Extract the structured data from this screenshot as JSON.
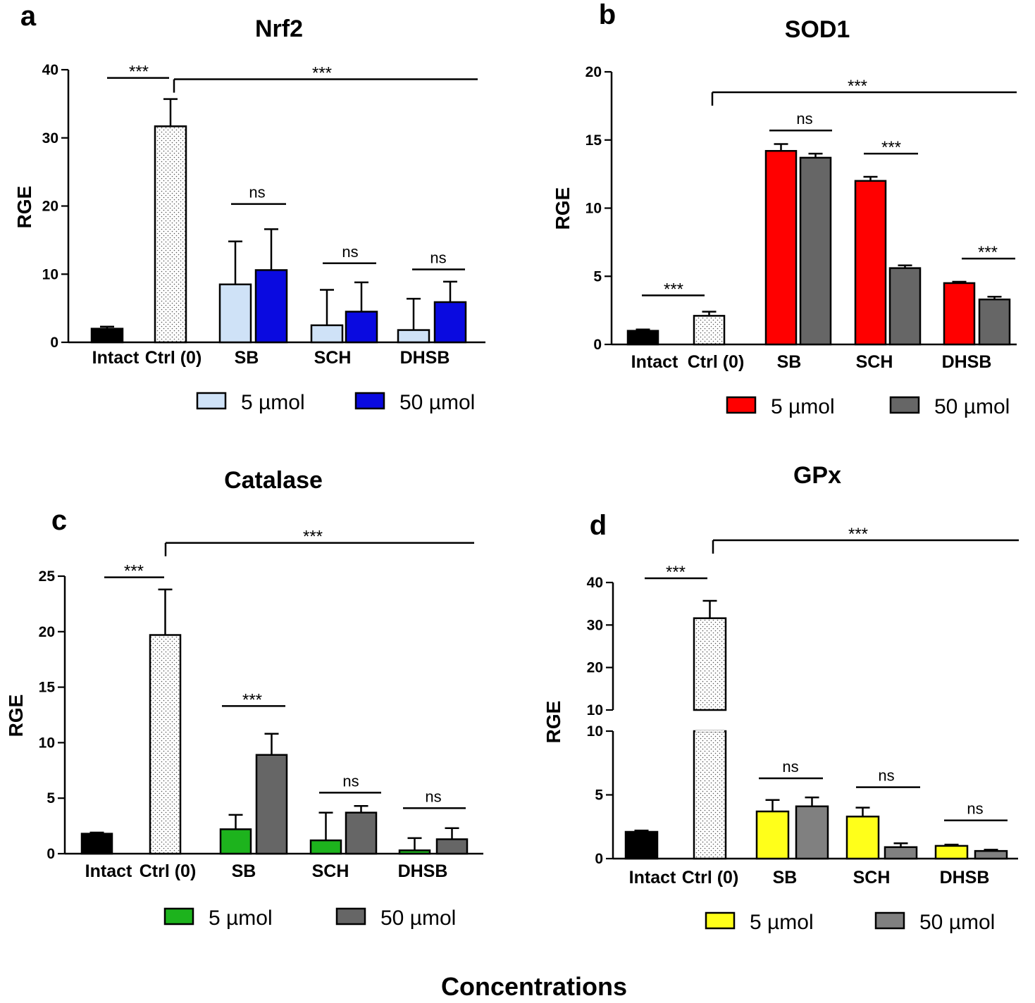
{
  "figure": {
    "common_xlabel": "Concentrations"
  },
  "chart_data": [
    {
      "panel": "a",
      "title": "Nrf2",
      "type": "bar",
      "ylabel": "RGE",
      "ylim": [
        0,
        40
      ],
      "yticks": [
        0,
        10,
        20,
        30,
        40
      ],
      "groups": [
        "Intact",
        "Ctrl (0)",
        "SB",
        "SCH",
        "DHSB"
      ],
      "legend": [
        {
          "label": "5 µmol",
          "color": "#cfe2f7"
        },
        {
          "label": "50 µmol",
          "color": "#0a0ae0"
        }
      ],
      "colors": {
        "intact": "#000000",
        "ctrl_pattern": "dots",
        "low": "#cfe2f7",
        "high": "#0a0ae0"
      },
      "bars": [
        {
          "group": "Intact",
          "series": "intact",
          "value": 2.0,
          "err": 0.3
        },
        {
          "group": "Ctrl (0)",
          "series": "ctrl",
          "value": 31.7,
          "err": 4.0
        },
        {
          "group": "SB",
          "series": "5 µmol",
          "value": 8.5,
          "err": 6.3
        },
        {
          "group": "SB",
          "series": "50 µmol",
          "value": 10.6,
          "err": 6.0
        },
        {
          "group": "SCH",
          "series": "5 µmol",
          "value": 2.5,
          "err": 5.2
        },
        {
          "group": "SCH",
          "series": "50 µmol",
          "value": 4.5,
          "err": 4.3
        },
        {
          "group": "DHSB",
          "series": "5 µmol",
          "value": 1.8,
          "err": 4.6
        },
        {
          "group": "DHSB",
          "series": "50 µmol",
          "value": 5.9,
          "err": 3.0
        }
      ],
      "annotations": [
        {
          "text": "***",
          "value": 38.8
        },
        {
          "text": "***",
          "value": 38.6
        },
        {
          "text": "ns",
          "value": 20.3
        },
        {
          "text": "ns",
          "value": 11.6
        },
        {
          "text": "ns",
          "value": 10.7
        }
      ]
    },
    {
      "panel": "b",
      "title": "SOD1",
      "type": "bar",
      "ylabel": "RGE",
      "ylim": [
        0,
        20
      ],
      "yticks": [
        0,
        5,
        10,
        15,
        20
      ],
      "groups": [
        "Intact",
        "Ctrl (0)",
        "SB",
        "SCH",
        "DHSB"
      ],
      "legend": [
        {
          "label": "5 µmol",
          "color": "#ff0000"
        },
        {
          "label": "50 µmol",
          "color": "#666666"
        }
      ],
      "colors": {
        "intact": "#000000",
        "ctrl_pattern": "dots",
        "low": "#ff0000",
        "high": "#666666"
      },
      "bars": [
        {
          "group": "Intact",
          "series": "intact",
          "value": 1.0,
          "err": 0.1
        },
        {
          "group": "Ctrl (0)",
          "series": "ctrl",
          "value": 2.1,
          "err": 0.3
        },
        {
          "group": "SB",
          "series": "5 µmol",
          "value": 14.2,
          "err": 0.5
        },
        {
          "group": "SB",
          "series": "50 µmol",
          "value": 13.7,
          "err": 0.3
        },
        {
          "group": "SCH",
          "series": "5 µmol",
          "value": 12.0,
          "err": 0.3
        },
        {
          "group": "SCH",
          "series": "50 µmol",
          "value": 5.6,
          "err": 0.2
        },
        {
          "group": "DHSB",
          "series": "5 µmol",
          "value": 4.5,
          "err": 0.1
        },
        {
          "group": "DHSB",
          "series": "50 µmol",
          "value": 3.3,
          "err": 0.2
        }
      ],
      "annotations": [
        {
          "text": "***",
          "value": 18.5
        },
        {
          "text": "ns",
          "value": 15.7
        },
        {
          "text": "***",
          "value": 14.0
        },
        {
          "text": "***",
          "value": 6.3
        },
        {
          "text": "***",
          "value": 3.6
        }
      ]
    },
    {
      "panel": "c",
      "title": "Catalase",
      "type": "bar",
      "ylabel": "RGE",
      "ylim": [
        0,
        25
      ],
      "yticks": [
        0,
        5,
        10,
        15,
        20,
        25
      ],
      "groups": [
        "Intact",
        "Ctrl (0)",
        "SB",
        "SCH",
        "DHSB"
      ],
      "legend": [
        {
          "label": "5 µmol",
          "color": "#1db31d"
        },
        {
          "label": "50 µmol",
          "color": "#666666"
        }
      ],
      "colors": {
        "intact": "#000000",
        "ctrl_pattern": "dots",
        "low": "#1db31d",
        "high": "#666666"
      },
      "bars": [
        {
          "group": "Intact",
          "series": "intact",
          "value": 1.8,
          "err": 0.1
        },
        {
          "group": "Ctrl (0)",
          "series": "ctrl",
          "value": 19.7,
          "err": 4.1
        },
        {
          "group": "SB",
          "series": "5 µmol",
          "value": 2.2,
          "err": 1.3
        },
        {
          "group": "SB",
          "series": "50 µmol",
          "value": 8.9,
          "err": 1.9
        },
        {
          "group": "SCH",
          "series": "5 µmol",
          "value": 1.2,
          "err": 2.5
        },
        {
          "group": "SCH",
          "series": "50 µmol",
          "value": 3.7,
          "err": 0.6
        },
        {
          "group": "DHSB",
          "series": "5 µmol",
          "value": 0.3,
          "err": 1.1
        },
        {
          "group": "DHSB",
          "series": "50 µmol",
          "value": 1.3,
          "err": 1.0
        }
      ],
      "annotations": [
        {
          "text": "***",
          "value": 24.9
        },
        {
          "text": "***",
          "value": 28.0
        },
        {
          "text": "***",
          "value": 13.3
        },
        {
          "text": "ns",
          "value": 5.5
        },
        {
          "text": "ns",
          "value": 4.1
        }
      ]
    },
    {
      "panel": "d",
      "title": "GPx",
      "type": "bar",
      "ylabel": "RGE",
      "axis_break": {
        "lower": [
          0,
          10
        ],
        "upper": [
          10,
          40
        ]
      },
      "yticks_lower": [
        0,
        5,
        10
      ],
      "yticks_upper": [
        10,
        20,
        30,
        40
      ],
      "groups": [
        "Intact",
        "Ctrl (0)",
        "SB",
        "SCH",
        "DHSB"
      ],
      "legend": [
        {
          "label": "5 µmol",
          "color": "#ffff1a"
        },
        {
          "label": "50 µmol",
          "color": "#808080"
        }
      ],
      "colors": {
        "intact": "#000000",
        "ctrl_pattern": "dots",
        "low": "#ffff1a",
        "high": "#808080"
      },
      "bars": [
        {
          "group": "Intact",
          "series": "intact",
          "value": 2.1,
          "err": 0.1
        },
        {
          "group": "Ctrl (0)",
          "series": "ctrl",
          "value": 31.6,
          "err": 4.1
        },
        {
          "group": "SB",
          "series": "5 µmol",
          "value": 3.7,
          "err": 0.9
        },
        {
          "group": "SB",
          "series": "50 µmol",
          "value": 4.1,
          "err": 0.7
        },
        {
          "group": "SCH",
          "series": "5 µmol",
          "value": 3.3,
          "err": 0.7
        },
        {
          "group": "SCH",
          "series": "50 µmol",
          "value": 0.9,
          "err": 0.3
        },
        {
          "group": "DHSB",
          "series": "5 µmol",
          "value": 1.0,
          "err": 0.1
        },
        {
          "group": "DHSB",
          "series": "50 µmol",
          "value": 0.6,
          "err": 0.1
        }
      ],
      "annotations": [
        {
          "text": "***",
          "value": 40.0
        },
        {
          "text": "***",
          "value": 46.0
        },
        {
          "text": "ns",
          "value": 6.3
        },
        {
          "text": "ns",
          "value": 5.6
        },
        {
          "text": "ns",
          "value": 3.0
        }
      ]
    }
  ]
}
